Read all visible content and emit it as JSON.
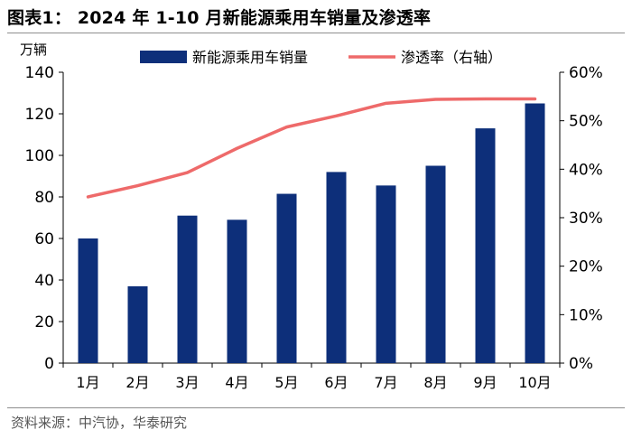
{
  "figure": {
    "title": "图表1： 2024 年 1-10 月新能源乘用车销量及渗透率",
    "source": "资料来源：中汽协，华泰研究"
  },
  "chart_data": {
    "type": "bar+line",
    "categories": [
      "1月",
      "2月",
      "3月",
      "4月",
      "5月",
      "6月",
      "7月",
      "8月",
      "9月",
      "10月"
    ],
    "series": [
      {
        "name": "新能源乘用车销量",
        "type": "bar",
        "axis": "left",
        "color": "#0d2f7a",
        "values": [
          60,
          37,
          71,
          69,
          81.5,
          92,
          85.5,
          95,
          113,
          125
        ]
      },
      {
        "name": "渗透率（右轴）",
        "type": "line",
        "axis": "right",
        "color": "#ee6a6a",
        "values": [
          34.3,
          36.6,
          39.3,
          44.3,
          48.7,
          51.0,
          53.6,
          54.4,
          54.5,
          54.5
        ]
      }
    ],
    "left_axis": {
      "unit": "万辆",
      "ylim": [
        0,
        140
      ],
      "ticks": [
        "0",
        "20",
        "40",
        "60",
        "80",
        "100",
        "120",
        "140"
      ]
    },
    "right_axis": {
      "ylim": [
        0,
        60
      ],
      "ticks": [
        "0%",
        "10%",
        "20%",
        "30%",
        "40%",
        "50%",
        "60%"
      ]
    },
    "legend": {
      "position": "top"
    }
  }
}
